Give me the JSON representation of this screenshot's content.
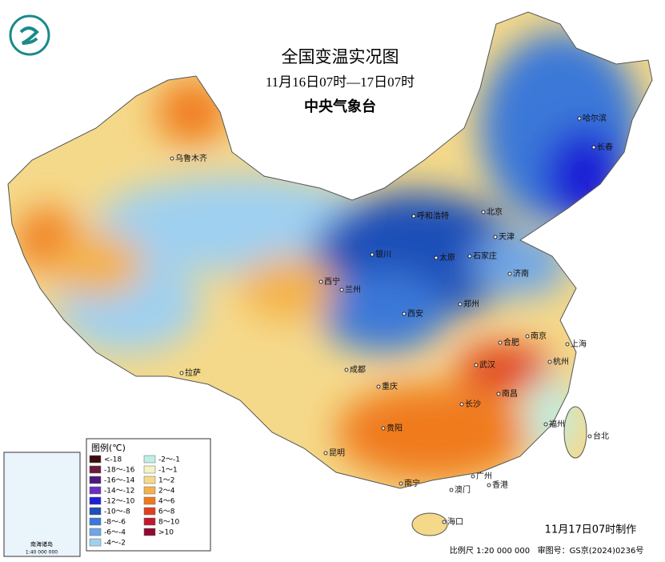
{
  "header": {
    "title": "全国变温实况图",
    "subtitle": "11月16日07时—17日07时",
    "issuer": "中央气象台"
  },
  "legend": {
    "title": "图例(℃)",
    "items": [
      {
        "label": "<-18",
        "color": "#3b0d0d"
      },
      {
        "label": "-18～-16",
        "color": "#6b1a3a"
      },
      {
        "label": "-16～-14",
        "color": "#4b1a7a"
      },
      {
        "label": "-14～-12",
        "color": "#6a2fc0"
      },
      {
        "label": "-12～-10",
        "color": "#1f1fd6"
      },
      {
        "label": "-10～-8",
        "color": "#1d4fb8"
      },
      {
        "label": "-8～-6",
        "color": "#3a78d8"
      },
      {
        "label": "-6～-4",
        "color": "#6fa6e6"
      },
      {
        "label": "-4～-2",
        "color": "#9fd0f0"
      },
      {
        "label": "-2～-1",
        "color": "#bfeee6"
      },
      {
        "label": "-1～1",
        "color": "#f5f3c4"
      },
      {
        "label": "1～2",
        "color": "#f5d98a"
      },
      {
        "label": "2～4",
        "color": "#f5b24a"
      },
      {
        "label": "4～6",
        "color": "#f07a1e"
      },
      {
        "label": "6～8",
        "color": "#e0401e"
      },
      {
        "label": "8～10",
        "color": "#c01a2a"
      },
      {
        "label": ">10",
        "color": "#900a30"
      }
    ]
  },
  "cities": [
    "乌鲁木齐",
    "呼和浩特",
    "北京",
    "天津",
    "银川",
    "太原",
    "石家庄",
    "济南",
    "西宁",
    "兰州",
    "西安",
    "郑州",
    "合肥",
    "南京",
    "上海",
    "拉萨",
    "成都",
    "武汉",
    "杭州",
    "重庆",
    "长沙",
    "南昌",
    "贵阳",
    "福州",
    "台北",
    "昆明",
    "广州",
    "南宁",
    "澳门",
    "香港",
    "海口",
    "哈尔滨",
    "长春"
  ],
  "inset": {
    "title": "南海诸岛",
    "scale": "1:40 000 000"
  },
  "footer": {
    "issued": "11月17日07时制作",
    "scale": "比例尺 1:20 000 000",
    "approval": "审图号：GS京(2024)0236号"
  }
}
